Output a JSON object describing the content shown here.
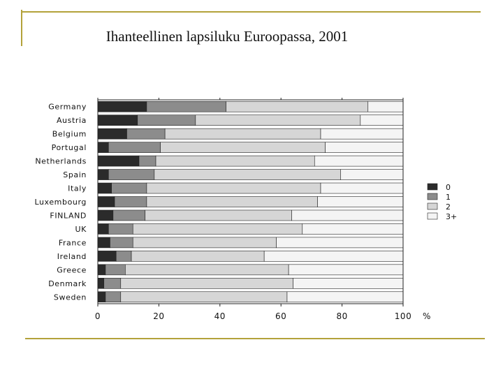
{
  "title": "Ihanteellinen lapsiluku Euroopassa, 2001",
  "chart_data": {
    "type": "bar",
    "orientation": "horizontal",
    "stacked": true,
    "title": "Ihanteellinen lapsiluku Euroopassa, 2001",
    "xlabel": "%",
    "ylabel": "",
    "xlim": [
      0,
      100
    ],
    "xticks": [
      0,
      20,
      40,
      60,
      80,
      100
    ],
    "legend_position": "right",
    "categories": [
      "Germany",
      "Austria",
      "Belgium",
      "Portugal",
      "Netherlands",
      "Spain",
      "Italy",
      "Luxembourg",
      "FINLAND",
      "UK",
      "France",
      "Ireland",
      "Greece",
      "Denmark",
      "Sweden"
    ],
    "series": [
      {
        "name": "0",
        "color": "#2b2b2b",
        "values": [
          16,
          13,
          9.5,
          3.5,
          13.5,
          3.5,
          4.5,
          5.5,
          5,
          3.5,
          4,
          6,
          2.5,
          2,
          2.5
        ]
      },
      {
        "name": "1",
        "color": "#8c8c8c",
        "values": [
          26,
          19,
          12.5,
          17,
          5.5,
          15,
          11.5,
          10.5,
          10.5,
          8,
          7.5,
          5,
          6.5,
          5.5,
          5
        ]
      },
      {
        "name": "2",
        "color": "#d6d6d6",
        "values": [
          46.5,
          54,
          51,
          54,
          52,
          61,
          57,
          56,
          48,
          55.5,
          47,
          43.5,
          53.5,
          56.5,
          54.5
        ]
      },
      {
        "name": "3+",
        "color": "#f4f4f4",
        "values": [
          11.5,
          14,
          27,
          25.5,
          29,
          20.5,
          27,
          28,
          36.5,
          33,
          41.5,
          45.5,
          37.5,
          36,
          38
        ]
      }
    ]
  }
}
